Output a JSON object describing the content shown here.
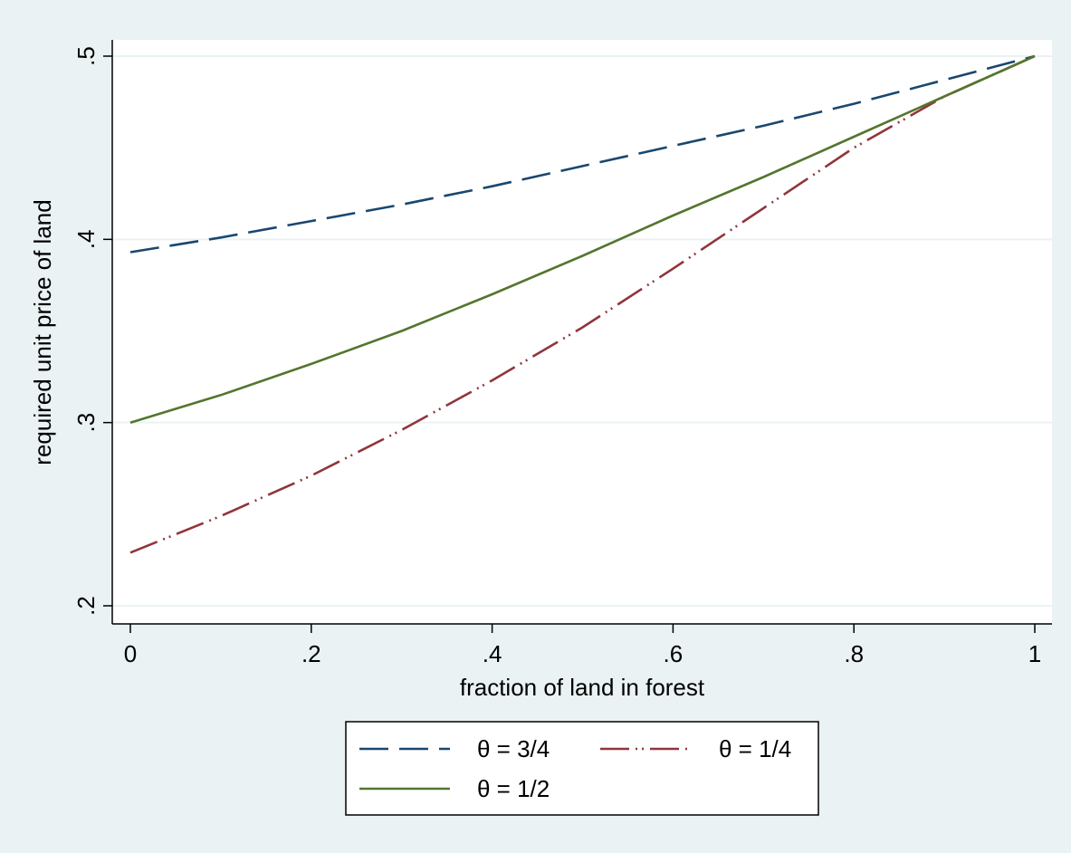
{
  "chart_data": {
    "type": "line",
    "title": "",
    "xlabel": "fraction of land in forest",
    "ylabel": "required unit price of land",
    "xlim": [
      0,
      1
    ],
    "ylim": [
      0.2,
      0.5
    ],
    "x_ticks": [
      0,
      0.2,
      0.4,
      0.6,
      0.8,
      1
    ],
    "x_tick_labels": [
      "0",
      ".2",
      ".4",
      ".6",
      ".8",
      "1"
    ],
    "y_ticks": [
      0.2,
      0.3,
      0.4,
      0.5
    ],
    "y_tick_labels": [
      ".2",
      ".3",
      ".4",
      ".5"
    ],
    "grid": "horizontal",
    "legend_position": "bottom",
    "x": [
      0,
      0.1,
      0.2,
      0.3,
      0.4,
      0.5,
      0.6,
      0.7,
      0.8,
      0.9,
      1.0
    ],
    "series": [
      {
        "name": "θ = 3/4",
        "color": "#1a476f",
        "style": "long-dash",
        "values": [
          0.393,
          0.401,
          0.41,
          0.419,
          0.429,
          0.44,
          0.451,
          0.462,
          0.474,
          0.487,
          0.5
        ]
      },
      {
        "name": "θ = 1/4",
        "color": "#90353b",
        "style": "dash-dot-dot",
        "values": [
          0.229,
          0.249,
          0.271,
          0.296,
          0.323,
          0.352,
          0.384,
          0.417,
          0.45,
          0.478,
          0.5
        ]
      },
      {
        "name": "θ = 1/2",
        "color": "#55752f",
        "style": "solid",
        "values": [
          0.3,
          0.315,
          0.332,
          0.35,
          0.37,
          0.391,
          0.413,
          0.434,
          0.456,
          0.478,
          0.5
        ]
      }
    ]
  },
  "colors": {
    "outer_background": "#eaf2f3",
    "plot_background": "#ffffff",
    "gridline": "#eaf2f3"
  }
}
